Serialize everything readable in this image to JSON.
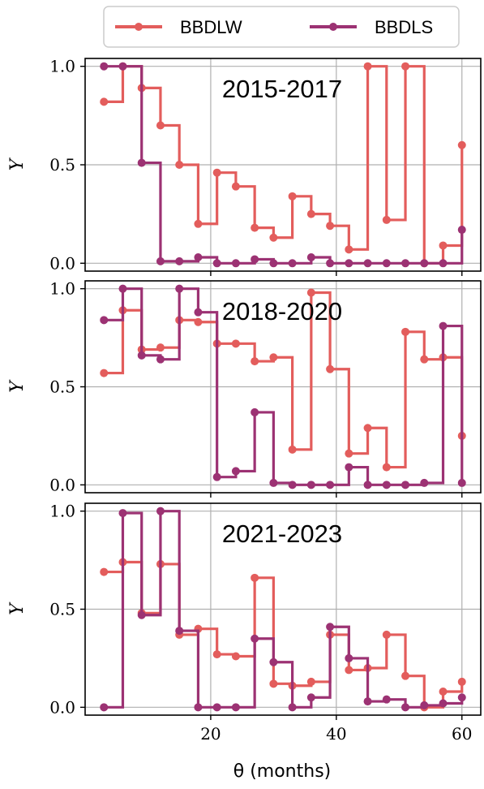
{
  "chart_data": {
    "type": "line",
    "step": "post",
    "x": [
      3,
      6,
      9,
      12,
      15,
      18,
      21,
      24,
      27,
      30,
      33,
      36,
      39,
      42,
      45,
      48,
      51,
      54,
      57,
      60
    ],
    "xlabel": "θ (months)",
    "ylabel": "Y",
    "xlim": [
      0,
      63
    ],
    "ylim": [
      -0.04,
      1.04
    ],
    "xticks": [
      20,
      40,
      60
    ],
    "yticks": [
      0.0,
      0.5,
      1.0
    ],
    "xtick_labels": [
      "20",
      "40",
      "60"
    ],
    "ytick_labels": [
      "0.0",
      "0.5",
      "1.0"
    ],
    "grid": true,
    "legend": {
      "position": "top-center",
      "entries": [
        "BBDLW",
        "BBDLS"
      ]
    },
    "colors": {
      "BBDLW": "#e35d5c",
      "BBDLS": "#9c3273"
    },
    "panels": [
      {
        "title": "2015-2017",
        "series": [
          {
            "name": "BBDLW",
            "values": [
              0.82,
              1.0,
              0.89,
              0.7,
              0.5,
              0.2,
              0.46,
              0.39,
              0.18,
              0.13,
              0.34,
              0.25,
              0.19,
              0.07,
              1.0,
              0.22,
              1.0,
              0.0,
              0.09,
              0.6
            ]
          },
          {
            "name": "BBDLS",
            "values": [
              1.0,
              1.0,
              0.51,
              0.01,
              0.01,
              0.03,
              0.0,
              0.0,
              0.02,
              0.0,
              0.0,
              0.03,
              0.0,
              0.0,
              0.0,
              0.0,
              0.0,
              0.0,
              0.0,
              0.17
            ]
          }
        ]
      },
      {
        "title": "2018-2020",
        "series": [
          {
            "name": "BBDLW",
            "values": [
              0.57,
              0.89,
              0.69,
              0.7,
              0.84,
              0.83,
              0.72,
              0.72,
              0.63,
              0.65,
              0.18,
              0.98,
              0.59,
              0.16,
              0.29,
              0.09,
              0.78,
              0.64,
              0.65,
              0.25
            ]
          },
          {
            "name": "BBDLS",
            "values": [
              0.84,
              1.0,
              0.66,
              0.64,
              1.0,
              0.88,
              0.04,
              0.07,
              0.37,
              0.01,
              0.0,
              0.0,
              0.0,
              0.09,
              0.0,
              0.0,
              0.0,
              0.01,
              0.81,
              0.01
            ]
          }
        ]
      },
      {
        "title": "2021-2023",
        "series": [
          {
            "name": "BBDLW",
            "values": [
              0.69,
              0.74,
              0.48,
              0.73,
              0.37,
              0.4,
              0.27,
              0.26,
              0.66,
              0.12,
              0.11,
              0.13,
              0.37,
              0.19,
              0.2,
              0.37,
              0.16,
              0.0,
              0.08,
              0.13
            ]
          },
          {
            "name": "BBDLS",
            "values": [
              0.0,
              0.99,
              0.47,
              1.0,
              0.39,
              0.0,
              0.0,
              0.0,
              0.35,
              0.23,
              0.0,
              0.05,
              0.41,
              0.25,
              0.03,
              0.04,
              0.0,
              0.01,
              0.02,
              0.05
            ]
          }
        ]
      }
    ]
  }
}
